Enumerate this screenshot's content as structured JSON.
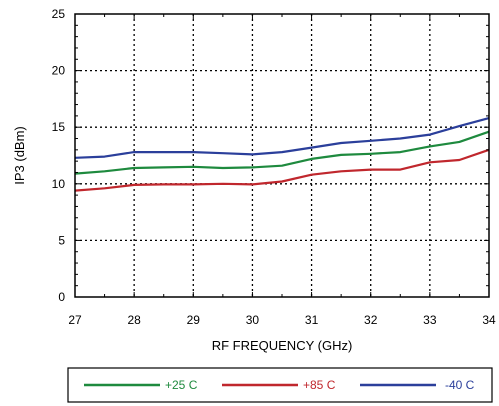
{
  "chart_data": {
    "type": "line",
    "xlabel": "RF FREQUENCY (GHz)",
    "ylabel": "IP3 (dBm)",
    "xlim": [
      27,
      34
    ],
    "ylim": [
      0,
      25
    ],
    "xticks": [
      27,
      28,
      29,
      30,
      31,
      32,
      33,
      34
    ],
    "yticks": [
      0,
      5,
      10,
      15,
      20,
      25
    ],
    "grid": "dotted",
    "legend_placement": "bottom",
    "series": [
      {
        "name": "+25 C",
        "color": "#1e8a3e",
        "x": [
          27,
          27.5,
          28,
          28.5,
          29,
          29.5,
          30,
          30.5,
          31,
          31.5,
          32,
          32.5,
          33,
          33.5,
          34
        ],
        "values": [
          10.9,
          11.1,
          11.4,
          11.45,
          11.5,
          11.4,
          11.45,
          11.6,
          12.2,
          12.55,
          12.65,
          12.8,
          13.3,
          13.7,
          14.6
        ]
      },
      {
        "name": "+85 C",
        "color": "#c0272d",
        "x": [
          27,
          27.5,
          28,
          28.5,
          29,
          29.5,
          30,
          30.5,
          31,
          31.5,
          32,
          32.5,
          33,
          33.5,
          34
        ],
        "values": [
          9.4,
          9.6,
          9.9,
          9.95,
          9.95,
          10.0,
          9.95,
          10.2,
          10.8,
          11.1,
          11.25,
          11.25,
          11.9,
          12.1,
          13.0
        ]
      },
      {
        "name": "-40 C",
        "color": "#2b3f9b",
        "x": [
          27,
          27.5,
          28,
          28.5,
          29,
          29.5,
          30,
          30.5,
          31,
          31.5,
          32,
          32.5,
          33,
          33.5,
          34
        ],
        "values": [
          12.3,
          12.4,
          12.8,
          12.8,
          12.8,
          12.7,
          12.6,
          12.8,
          13.2,
          13.6,
          13.8,
          14.0,
          14.35,
          15.1,
          15.8
        ]
      }
    ]
  }
}
